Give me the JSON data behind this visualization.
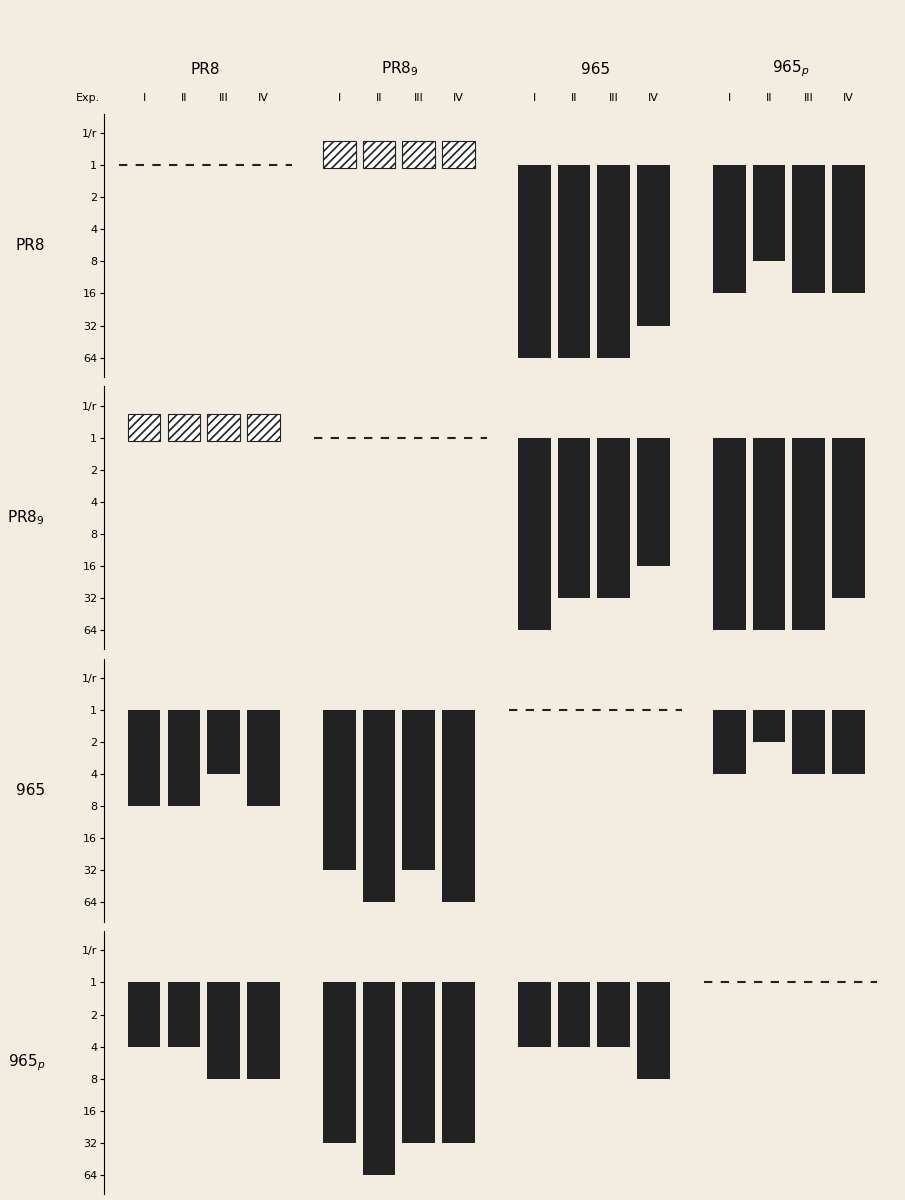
{
  "background_color": "#f2ede0",
  "bar_color": "#222222",
  "hatch_color": "#222222",
  "dashed_color": "#222222",
  "bar_data": {
    "PR8_row": {
      "PR8_col": {
        "type": "dashed"
      },
      "PR89_col": {
        "type": "hatched"
      },
      "965_col": {
        "type": "solid",
        "values": [
          6,
          6,
          6,
          5
        ]
      },
      "965p_col": {
        "type": "solid",
        "values": [
          4,
          3,
          4,
          4
        ]
      }
    },
    "PR89_row": {
      "PR8_col": {
        "type": "hatched"
      },
      "PR89_col": {
        "type": "dashed"
      },
      "965_col": {
        "type": "solid",
        "values": [
          6,
          5,
          5,
          4
        ]
      },
      "965p_col": {
        "type": "solid",
        "values": [
          6,
          6,
          6,
          5
        ]
      }
    },
    "965_row": {
      "PR8_col": {
        "type": "solid",
        "values": [
          3,
          3,
          2,
          3
        ]
      },
      "PR89_col": {
        "type": "solid",
        "values": [
          5,
          6,
          5,
          6
        ]
      },
      "965_col": {
        "type": "dashed"
      },
      "965p_col": {
        "type": "solid",
        "values": [
          2,
          1,
          2,
          2
        ]
      }
    },
    "965p_row": {
      "PR8_col": {
        "type": "solid",
        "values": [
          2,
          2,
          3,
          3
        ]
      },
      "PR89_col": {
        "type": "solid",
        "values": [
          5,
          6,
          5,
          5
        ]
      },
      "965_col": {
        "type": "solid",
        "values": [
          2,
          2,
          2,
          3
        ]
      },
      "965p_col": {
        "type": "dashed"
      }
    }
  },
  "row_labels": [
    "PR8",
    "PR8$_9$",
    "965",
    "965$_p$"
  ],
  "col_group_labels": [
    "PR8",
    "PR8$_9$",
    "965",
    "965$_p$"
  ],
  "exp_labels": [
    "I",
    "II",
    "III",
    "IV"
  ],
  "ytick_labels": [
    "1/r",
    "1",
    "2",
    "4",
    "8",
    "16",
    "32",
    "64"
  ],
  "fig_width": 9.05,
  "fig_height": 12.0
}
